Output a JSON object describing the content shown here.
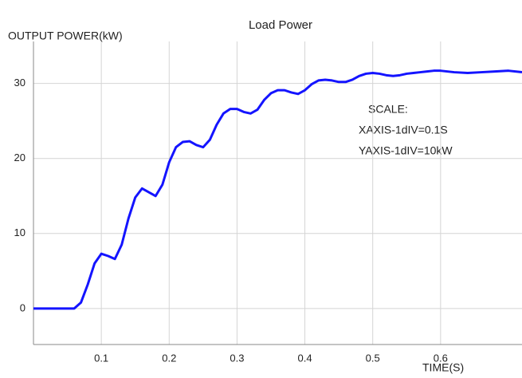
{
  "chart_data": {
    "type": "line",
    "title": "Load Power",
    "y_label": "OUTPUT POWER(kW)",
    "x_label": "TIME(S)",
    "annotations": [
      "SCALE:",
      "XAXIS-1dIV=0.1S",
      "YAXIS-1dIV=10kW"
    ],
    "xlim": [
      0,
      0.72
    ],
    "ylim": [
      -4.8,
      35.6
    ],
    "xticks": [
      0.1,
      0.2,
      0.3,
      0.4,
      0.5,
      0.6
    ],
    "yticks": [
      0,
      10,
      20,
      30
    ],
    "grid": true,
    "series": [
      {
        "color": "#1414ff",
        "x": [
          0,
          0.06,
          0.07,
          0.08,
          0.09,
          0.1,
          0.11,
          0.12,
          0.13,
          0.14,
          0.15,
          0.16,
          0.17,
          0.18,
          0.19,
          0.2,
          0.21,
          0.22,
          0.23,
          0.24,
          0.25,
          0.26,
          0.27,
          0.28,
          0.29,
          0.3,
          0.31,
          0.32,
          0.33,
          0.34,
          0.35,
          0.36,
          0.37,
          0.38,
          0.39,
          0.4,
          0.41,
          0.42,
          0.43,
          0.44,
          0.45,
          0.46,
          0.47,
          0.48,
          0.49,
          0.5,
          0.51,
          0.52,
          0.53,
          0.54,
          0.55,
          0.56,
          0.57,
          0.58,
          0.59,
          0.6,
          0.62,
          0.64,
          0.66,
          0.68,
          0.7,
          0.72
        ],
        "values": [
          0,
          0,
          0.8,
          3.2,
          6,
          7.3,
          7,
          6.6,
          8.5,
          12,
          14.8,
          16,
          15.5,
          15,
          16.5,
          19.5,
          21.5,
          22.2,
          22.3,
          21.8,
          21.5,
          22.5,
          24.5,
          26,
          26.6,
          26.6,
          26.2,
          26,
          26.5,
          27.8,
          28.7,
          29.1,
          29.1,
          28.8,
          28.6,
          29.1,
          29.9,
          30.4,
          30.5,
          30.4,
          30.2,
          30.2,
          30.5,
          31,
          31.3,
          31.4,
          31.3,
          31.1,
          31,
          31.1,
          31.3,
          31.4,
          31.5,
          31.6,
          31.7,
          31.7,
          31.5,
          31.4,
          31.5,
          31.6,
          31.7,
          31.5
        ]
      }
    ]
  }
}
